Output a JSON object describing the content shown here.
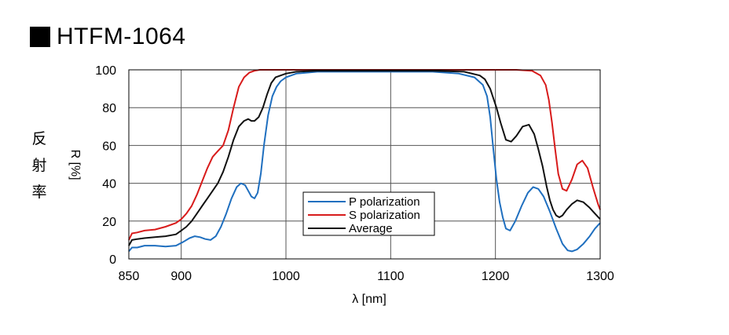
{
  "header": {
    "title": "HTFM-1064"
  },
  "side_label": [
    "反",
    "射",
    "率"
  ],
  "chart_data": {
    "type": "line",
    "title": "HTFM-1064",
    "xlabel": "λ [nm]",
    "ylabel": "R [%]",
    "xlim": [
      850,
      1300
    ],
    "ylim": [
      0,
      100
    ],
    "xticks": [
      850,
      900,
      1000,
      1100,
      1200,
      1300
    ],
    "yticks": [
      0,
      20,
      40,
      60,
      80,
      100
    ],
    "grid": true,
    "legend_position": "center-bottom",
    "series": [
      {
        "name": "P polarization",
        "color": "#1f6fbf",
        "x": [
          850,
          853,
          858,
          865,
          875,
          885,
          895,
          902,
          908,
          913,
          918,
          923,
          928,
          933,
          938,
          943,
          948,
          953,
          957,
          961,
          964,
          967,
          970,
          973,
          976,
          979,
          983,
          987,
          991,
          995,
          1000,
          1010,
          1030,
          1060,
          1100,
          1140,
          1165,
          1180,
          1188,
          1192,
          1195,
          1198,
          1201,
          1204,
          1207,
          1210,
          1214,
          1219,
          1225,
          1231,
          1236,
          1241,
          1246,
          1252,
          1258,
          1264,
          1269,
          1273,
          1278,
          1284,
          1290,
          1295,
          1300
        ],
        "y": [
          4,
          6,
          6,
          7,
          7,
          6.5,
          7,
          9,
          11,
          12,
          11.5,
          10.5,
          10,
          12,
          17,
          24,
          32,
          38,
          40,
          39,
          36,
          33,
          32,
          35,
          45,
          60,
          76,
          86,
          91,
          94,
          96,
          98,
          99,
          99,
          99,
          99,
          98,
          96,
          92,
          86,
          75,
          58,
          42,
          30,
          22,
          16,
          15,
          20,
          28,
          35,
          38,
          37,
          33,
          25,
          16,
          8,
          4.5,
          4,
          5,
          8,
          12,
          16,
          19
        ]
      },
      {
        "name": "S polarization",
        "color": "#d81b1b",
        "x": [
          850,
          853,
          858,
          865,
          875,
          885,
          895,
          900,
          905,
          910,
          915,
          920,
          925,
          930,
          935,
          940,
          945,
          950,
          955,
          960,
          965,
          970,
          975,
          980,
          990,
          1050,
          1100,
          1150,
          1200,
          1220,
          1235,
          1243,
          1248,
          1251,
          1254,
          1257,
          1260,
          1264,
          1268,
          1273,
          1278,
          1283,
          1288,
          1293,
          1298,
          1300
        ],
        "y": [
          10,
          13.5,
          14,
          15,
          15.5,
          17,
          19,
          21,
          24,
          28,
          34,
          41,
          48,
          54,
          57,
          60,
          68,
          80,
          91,
          96,
          98.5,
          99.5,
          100,
          100,
          100,
          100,
          100,
          100,
          100,
          100,
          99.5,
          97,
          92,
          84,
          72,
          58,
          45,
          37,
          36,
          42,
          50,
          52,
          48,
          38,
          29,
          26
        ]
      },
      {
        "name": "Average",
        "color": "#111111",
        "x": [
          850,
          853,
          858,
          865,
          875,
          885,
          895,
          900,
          905,
          910,
          915,
          920,
          925,
          930,
          935,
          940,
          945,
          950,
          955,
          960,
          964,
          967,
          970,
          974,
          978,
          982,
          986,
          990,
          995,
          1000,
          1010,
          1030,
          1060,
          1100,
          1140,
          1170,
          1185,
          1190,
          1195,
          1198,
          1201,
          1205,
          1210,
          1215,
          1220,
          1226,
          1232,
          1237,
          1241,
          1245,
          1249,
          1252,
          1255,
          1258,
          1261,
          1264,
          1268,
          1273,
          1278,
          1284,
          1290,
          1295,
          1300
        ],
        "y": [
          7,
          10,
          10.5,
          11,
          11.5,
          12,
          13,
          15,
          17,
          20,
          24,
          28,
          32,
          36,
          40,
          46,
          54,
          63,
          70,
          73,
          74,
          73,
          73,
          75,
          80,
          87,
          93,
          96,
          97,
          98,
          99,
          99.5,
          99.5,
          99.5,
          99.5,
          99,
          97,
          95,
          90,
          85,
          80,
          72,
          63,
          62,
          65,
          70,
          71,
          66,
          58,
          49,
          38,
          31,
          26,
          23,
          22,
          23,
          26,
          29,
          31,
          30,
          27,
          24,
          21
        ]
      }
    ]
  }
}
